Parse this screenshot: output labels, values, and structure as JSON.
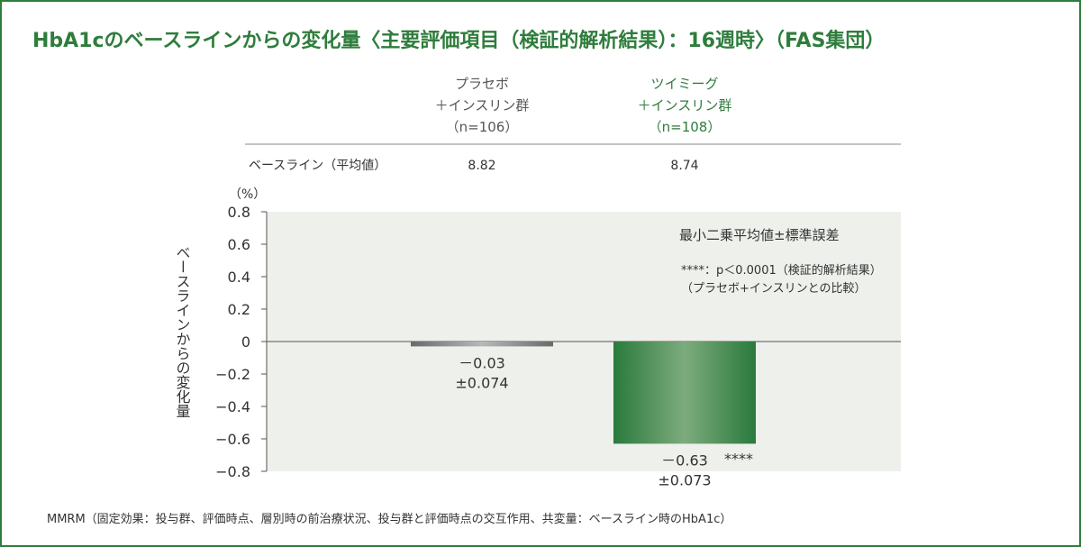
{
  "title": "HbA1cのベースラインからの変化量〈主要評価項目（検証的解析結果）：16週時〉（FAS集団）",
  "groups": [
    {
      "line1": "プラセボ",
      "line2": "＋インスリン群",
      "line3": "（n=106）",
      "baseline": "8.82"
    },
    {
      "line1": "ツイミーグ",
      "line2": "＋インスリン群",
      "line3": "（n=108）",
      "baseline": "8.74"
    }
  ],
  "baseline_label": "ベースライン（平均値）",
  "legend": {
    "lsmean": "最小二乗平均値±標準誤差",
    "pvalue": "****：p＜0.0001（検証的解析結果）",
    "comparison": "（プラセボ+インスリンとの比較）"
  },
  "footnote": "MMRM（固定効果：投与群、評価時点、層別時の前治療状況、投与群と評価時点の交互作用、共変量：ベースライン時のHbA1c）",
  "colors": {
    "accent": "#2e7d3c",
    "placebo": "#777777",
    "plot_bg": "#eef0ec"
  },
  "chart_data": {
    "type": "bar",
    "categories": [
      "プラセボ＋インスリン群",
      "ツイミーグ＋インスリン群"
    ],
    "values": [
      -0.03,
      -0.63
    ],
    "errors": [
      0.074,
      0.073
    ],
    "value_labels": [
      "－0.03",
      "－0.63"
    ],
    "error_labels": [
      "±0.074",
      "±0.073"
    ],
    "significance": [
      "",
      "****"
    ],
    "ylabel": "ベースラインからの変化量",
    "yunit": "（%）",
    "ylim": [
      -0.8,
      0.8
    ],
    "yticks": [
      0.8,
      0.6,
      0.4,
      0.2,
      0,
      -0.2,
      -0.4,
      -0.6,
      -0.8
    ],
    "ytick_labels": [
      "0.8",
      "0.6",
      "0.4",
      "0.2",
      "0",
      "−0.2",
      "−0.4",
      "−0.6",
      "−0.8"
    ]
  }
}
